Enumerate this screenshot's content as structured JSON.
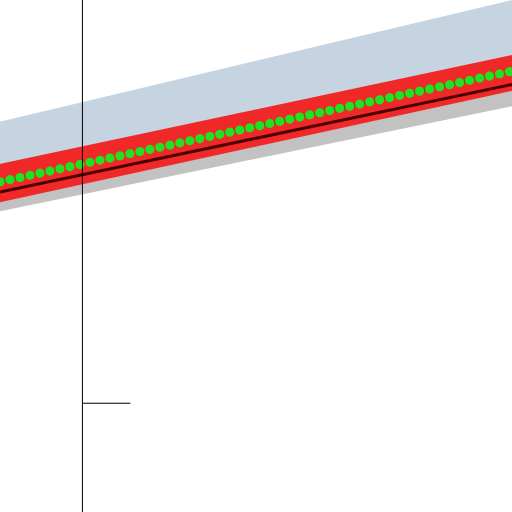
{
  "chart_data": {
    "type": "line",
    "title": "",
    "xlabel": "",
    "ylabel": "",
    "grid": false,
    "legend": "none",
    "xlim": [
      -1.65,
      8.6
    ],
    "ylim": [
      -4.0,
      0.0
    ],
    "x": [
      -1.65,
      -1.45,
      -1.25,
      -1.05,
      -0.85,
      -0.65,
      -0.45,
      -0.25,
      -0.05,
      0.15,
      0.35,
      0.55,
      0.75,
      0.95,
      1.15,
      1.35,
      1.55,
      1.75,
      1.95,
      2.15,
      2.35,
      2.55,
      2.75,
      2.95,
      3.15,
      3.35,
      3.55,
      3.75,
      3.95,
      4.15,
      4.35,
      4.55,
      4.75,
      4.95,
      5.15,
      5.35,
      5.55,
      5.75,
      5.95,
      6.15,
      6.35,
      6.55,
      6.75,
      6.95,
      7.15,
      7.35,
      7.55,
      7.75,
      7.95,
      8.15,
      8.35,
      8.55
    ],
    "series": [
      {
        "role": "outer-band",
        "color": "#c6d4e2",
        "upper": [
          -0.95,
          -0.0
        ],
        "lower": [
          -1.4,
          -0.55
        ],
        "x": [
          -1.65,
          8.6
        ]
      },
      {
        "role": "gray-band",
        "color": "#c2c2c2",
        "upper": [
          -1.46,
          -0.64
        ],
        "lower": [
          -1.65,
          -0.83
        ],
        "x": [
          -1.65,
          8.6
        ]
      },
      {
        "role": "red-band",
        "color": "#f02828",
        "upper": [
          -1.28,
          -0.43
        ],
        "lower": [
          -1.58,
          -0.71
        ],
        "x": [
          -1.65,
          8.6
        ]
      },
      {
        "role": "dark-line",
        "color": "#4a0000",
        "y": [
          -1.5,
          -0.66
        ],
        "x": [
          -1.65,
          8.6
        ]
      },
      {
        "role": "green-points",
        "color": "#22e022",
        "dashed": true,
        "y_start": -1.42,
        "y_end": -0.56
      }
    ],
    "axes": {
      "y_axis_x": 0.0,
      "tick_y": -3.15,
      "color": "#000000"
    }
  }
}
